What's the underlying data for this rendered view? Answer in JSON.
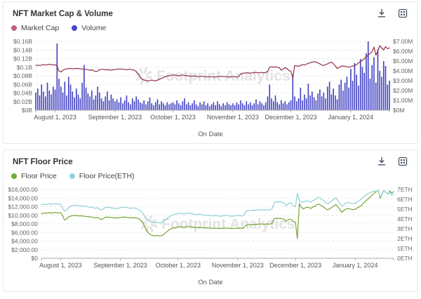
{
  "watermark": {
    "text": "Footprint Analytics"
  },
  "toolbar": {
    "icons": [
      "download-icon",
      "embed-icon"
    ]
  },
  "chart_data": [
    {
      "type": "line",
      "title": "NFT Market Cap & Volume",
      "xlabel": "On Date",
      "grid": "dashed-horizontal",
      "legend_position": "top-left",
      "legend": [
        {
          "label": "Market Cap",
          "swatch": "#bf5f7e"
        },
        {
          "label": "Volume",
          "swatch": "#4646cd"
        }
      ],
      "left_axis": {
        "max": 0.16,
        "ticks_top_down": [
          "$0.16B",
          "$0.14B",
          "$0.12B",
          "$0.1B",
          "$0.08B",
          "$0.06B",
          "$0.04B",
          "$0.02B",
          "$0B"
        ]
      },
      "right_axis": {
        "max": 7,
        "ticks_top_down": [
          "$7.00M",
          "$6.00M",
          "$5.00M",
          "$4.00M",
          "$3.00M",
          "$2.00M",
          "$1.00M",
          "$0M"
        ]
      },
      "total_days": 184,
      "x_ticks": [
        {
          "label": "August 1, 2023",
          "day": 10
        },
        {
          "label": "September 1, 2023",
          "day": 41
        },
        {
          "label": "October 1, 2023",
          "day": 71
        },
        {
          "label": "November 1, 2023",
          "day": 102
        },
        {
          "label": "December 1, 2023",
          "day": 132
        },
        {
          "label": "January 1, 2024",
          "day": 163
        }
      ],
      "series": [
        {
          "name": "Market Cap",
          "type": "line",
          "axis": "left",
          "color": "#8e2f43",
          "values": [
            0.104,
            0.105,
            0.104,
            0.105,
            0.106,
            0.105,
            0.106,
            0.107,
            0.106,
            0.105,
            0.106,
            0.103,
            0.091,
            0.089,
            0.093,
            0.095,
            0.096,
            0.097,
            0.097,
            0.096,
            0.097,
            0.097,
            0.097,
            0.096,
            0.096,
            0.095,
            0.095,
            0.094,
            0.093,
            0.094,
            0.092,
            0.09,
            0.091,
            0.094,
            0.095,
            0.095,
            0.094,
            0.094,
            0.094,
            0.093,
            0.094,
            0.095,
            0.095,
            0.096,
            0.096,
            0.095,
            0.095,
            0.094,
            0.095,
            0.095,
            0.094,
            0.093,
            0.09,
            0.084,
            0.077,
            0.072,
            0.07,
            0.069,
            0.068,
            0.069,
            0.07,
            0.069,
            0.068,
            0.07,
            0.072,
            0.074,
            0.076,
            0.078,
            0.079,
            0.08,
            0.081,
            0.082,
            0.082,
            0.081,
            0.08,
            0.081,
            0.082,
            0.081,
            0.08,
            0.08,
            0.079,
            0.079,
            0.08,
            0.079,
            0.078,
            0.078,
            0.079,
            0.078,
            0.078,
            0.077,
            0.078,
            0.078,
            0.077,
            0.077,
            0.078,
            0.078,
            0.079,
            0.078,
            0.078,
            0.078,
            0.077,
            0.078,
            0.078,
            0.078,
            0.077,
            0.078,
            0.084,
            0.086,
            0.086,
            0.087,
            0.087,
            0.086,
            0.087,
            0.087,
            0.088,
            0.087,
            0.087,
            0.088,
            0.087,
            0.088,
            0.09,
            0.1,
            0.101,
            0.1,
            0.101,
            0.1,
            0.099,
            0.093,
            0.096,
            0.099,
            0.097,
            0.092,
            0.091,
            0.075,
            0.104,
            0.103,
            0.102,
            0.104,
            0.106,
            0.105,
            0.107,
            0.109,
            0.11,
            0.112,
            0.113,
            0.112,
            0.11,
            0.108,
            0.105,
            0.104,
            0.106,
            0.108,
            0.11,
            0.112,
            0.108,
            0.103,
            0.097,
            0.1,
            0.102,
            0.103,
            0.102,
            0.101,
            0.1,
            0.101,
            0.103,
            0.104,
            0.106,
            0.11,
            0.113,
            0.116,
            0.12,
            0.124,
            0.128,
            0.132,
            0.136,
            0.147,
            0.128,
            0.138,
            0.15,
            0.145,
            0.14,
            0.148,
            0.143,
            0.145
          ]
        },
        {
          "name": "Volume",
          "type": "bar",
          "axis": "right",
          "color": "#4040c4",
          "values": [
            1.8,
            2.2,
            1.5,
            2.6,
            1.9,
            1.4,
            2.8,
            2.0,
            1.6,
            2.4,
            2.1,
            6.8,
            3.2,
            2.4,
            1.8,
            2.9,
            1.5,
            3.4,
            2.6,
            1.9,
            1.3,
            2.2,
            1.6,
            1.2,
            2.8,
            4.6,
            2.3,
            1.7,
            1.4,
            2.0,
            1.1,
            1.5,
            2.4,
            1.8,
            1.2,
            0.9,
            1.4,
            1.9,
            1.0,
            1.6,
            1.2,
            0.9,
            1.1,
            0.8,
            1.3,
            0.7,
            1.0,
            1.5,
            0.8,
            0.6,
            1.2,
            0.9,
            1.4,
            1.1,
            0.8,
            0.7,
            1.0,
            0.6,
            0.9,
            1.3,
            0.7,
            0.5,
            0.8,
            1.1,
            0.6,
            0.9,
            0.7,
            0.5,
            0.8,
            0.6,
            0.7,
            0.8,
            0.6,
            1.0,
            0.7,
            0.5,
            0.9,
            1.2,
            0.6,
            0.8,
            0.5,
            0.7,
            1.0,
            0.6,
            0.4,
            0.8,
            0.6,
            0.9,
            0.5,
            0.7,
            0.4,
            0.6,
            0.8,
            0.5,
            0.9,
            0.6,
            0.4,
            0.7,
            0.5,
            0.8,
            0.6,
            0.5,
            0.7,
            0.5,
            0.8,
            0.6,
            1.0,
            0.7,
            0.5,
            0.9,
            0.6,
            0.8,
            0.5,
            0.7,
            1.1,
            0.6,
            0.9,
            0.7,
            0.5,
            0.8,
            1.4,
            2.6,
            1.2,
            0.9,
            1.5,
            0.8,
            0.6,
            1.0,
            0.7,
            0.9,
            0.6,
            0.8,
            1.0,
            3.6,
            1.4,
            0.9,
            1.2,
            2.3,
            1.0,
            1.6,
            1.2,
            2.7,
            1.5,
            1.9,
            1.3,
            1.0,
            1.7,
            2.1,
            1.4,
            1.8,
            1.2,
            2.4,
            2.9,
            1.6,
            2.2,
            1.5,
            1.1,
            2.6,
            3.1,
            2.0,
            2.8,
            3.4,
            2.3,
            4.2,
            3.0,
            4.8,
            3.6,
            2.5,
            5.2,
            4.4,
            3.8,
            5.8,
            7.0,
            3.2,
            4.6,
            5.4,
            2.8,
            6.2,
            4.0,
            3.4,
            5.0,
            4.5,
            2.6,
            3.0
          ]
        }
      ]
    },
    {
      "type": "line",
      "title": "NFT Floor Price",
      "xlabel": "On Date",
      "grid": "dashed-horizontal",
      "legend_position": "top-left",
      "legend": [
        {
          "label": "Floor Price",
          "swatch": "#6faf35"
        },
        {
          "label": "Floor Price(ETH)",
          "swatch": "#8fd3dc"
        }
      ],
      "left_axis": {
        "max": 16000,
        "ticks_top_down": [
          "$16,000.00",
          "$14,000.00",
          "$12,000.00",
          "$10,000.00",
          "$8,000.00",
          "$6,000.00",
          "$4,000.00",
          "$2,000.00",
          "$0"
        ]
      },
      "right_axis": {
        "max": 7,
        "ticks_top_down": [
          "7ETH",
          "6ETH",
          "5ETH",
          "4ETH",
          "3ETH",
          "2ETH",
          "1ETH",
          "0ETH"
        ]
      },
      "total_days": 184,
      "x_ticks": [
        {
          "label": "August 1, 2023",
          "day": 10
        },
        {
          "label": "September 1, 2023",
          "day": 41
        },
        {
          "label": "October 1, 2023",
          "day": 71
        },
        {
          "label": "November 1, 2023",
          "day": 102
        },
        {
          "label": "December 1, 2023",
          "day": 132
        },
        {
          "label": "January 1, 2024",
          "day": 163
        }
      ],
      "series": [
        {
          "name": "Floor Price",
          "type": "line",
          "axis": "left",
          "color": "#78a432",
          "values": [
            10400,
            10500,
            10450,
            10550,
            10600,
            10500,
            10550,
            10650,
            10600,
            10550,
            10600,
            9900,
            8900,
            9100,
            9600,
            9800,
            9900,
            10000,
            9950,
            9900,
            9850,
            9900,
            9800,
            9750,
            9700,
            9650,
            9600,
            9500,
            9400,
            9500,
            9300,
            9000,
            9200,
            9500,
            9600,
            9550,
            9500,
            9450,
            9400,
            9350,
            9400,
            9500,
            9550,
            9600,
            9550,
            9500,
            9450,
            9400,
            9450,
            9400,
            9300,
            9100,
            8700,
            8000,
            7000,
            6200,
            5700,
            5400,
            5300,
            5200,
            5300,
            5250,
            5200,
            5400,
            5700,
            6100,
            6500,
            6800,
            7000,
            7100,
            7200,
            7300,
            7350,
            7300,
            7200,
            7300,
            7400,
            7350,
            7300,
            7250,
            7200,
            7150,
            7200,
            7150,
            7100,
            7050,
            7100,
            7050,
            7000,
            6950,
            7000,
            7000,
            6950,
            6900,
            6950,
            7000,
            7050,
            7000,
            6950,
            6900,
            6950,
            7000,
            7000,
            7000,
            6950,
            7000,
            7600,
            7800,
            7800,
            7850,
            7900,
            7850,
            7900,
            7950,
            8000,
            7950,
            7900,
            8000,
            7950,
            8000,
            8200,
            9200,
            9300,
            9250,
            9300,
            9200,
            9100,
            8600,
            8900,
            9100,
            9000,
            8500,
            8400,
            4600,
            12800,
            11900,
            11500,
            11700,
            11900,
            11800,
            11600,
            11900,
            12100,
            12400,
            12600,
            12400,
            12100,
            11800,
            11400,
            11300,
            11600,
            11900,
            12200,
            12500,
            12000,
            11400,
            10700,
            11100,
            11400,
            11600,
            11500,
            11400,
            11300,
            11400,
            11700,
            11900,
            12200,
            12700,
            13100,
            13500,
            13900,
            14300,
            14800,
            15200,
            15500,
            15900,
            13900,
            15000,
            15800,
            15300,
            14900,
            15700,
            15200,
            15500
          ]
        },
        {
          "name": "Floor Price(ETH)",
          "type": "line",
          "axis": "right",
          "color": "#8ecfd6",
          "values": [
            5.45,
            5.5,
            5.48,
            5.52,
            5.55,
            5.5,
            5.52,
            5.56,
            5.54,
            5.5,
            5.5,
            5.1,
            4.8,
            4.9,
            5.1,
            5.3,
            5.35,
            5.4,
            5.4,
            5.35,
            5.3,
            5.35,
            5.3,
            5.3,
            5.25,
            5.2,
            5.2,
            5.15,
            5.1,
            5.15,
            5.05,
            4.9,
            5.0,
            5.15,
            5.2,
            5.18,
            5.15,
            5.1,
            5.1,
            5.05,
            5.1,
            5.15,
            5.2,
            5.2,
            5.18,
            5.15,
            5.1,
            5.1,
            5.12,
            5.1,
            5.0,
            4.9,
            4.75,
            4.5,
            4.2,
            3.95,
            3.8,
            3.7,
            3.65,
            3.6,
            3.65,
            3.62,
            3.6,
            3.7,
            3.85,
            4.0,
            4.15,
            4.3,
            4.4,
            4.45,
            4.5,
            4.55,
            4.6,
            4.55,
            4.5,
            4.55,
            4.6,
            4.58,
            4.55,
            4.5,
            4.48,
            4.45,
            4.5,
            4.45,
            4.4,
            4.38,
            4.4,
            4.38,
            4.35,
            4.3,
            4.35,
            4.35,
            4.3,
            4.28,
            4.3,
            4.35,
            4.38,
            4.35,
            4.3,
            4.28,
            4.3,
            4.35,
            4.35,
            4.35,
            4.3,
            4.35,
            4.7,
            4.85,
            4.85,
            4.88,
            4.9,
            4.88,
            4.9,
            4.93,
            4.95,
            4.93,
            4.9,
            4.95,
            4.93,
            4.95,
            5.1,
            5.7,
            5.75,
            5.72,
            5.75,
            5.7,
            5.63,
            5.35,
            5.5,
            5.65,
            5.58,
            5.3,
            5.25,
            6.6,
            5.9,
            5.75,
            5.7,
            5.78,
            5.85,
            5.8,
            5.72,
            5.85,
            5.95,
            6.1,
            6.2,
            6.1,
            5.95,
            5.8,
            5.6,
            5.55,
            5.7,
            5.85,
            6.0,
            6.15,
            5.9,
            5.6,
            5.3,
            5.45,
            5.6,
            5.7,
            5.65,
            5.6,
            5.55,
            5.6,
            5.75,
            5.85,
            6.0,
            6.2,
            6.35,
            6.5,
            6.6,
            6.7,
            6.8,
            6.85,
            6.8,
            6.95,
            6.2,
            6.6,
            6.9,
            6.7,
            6.5,
            6.8,
            6.4,
            6.55
          ]
        }
      ]
    }
  ]
}
